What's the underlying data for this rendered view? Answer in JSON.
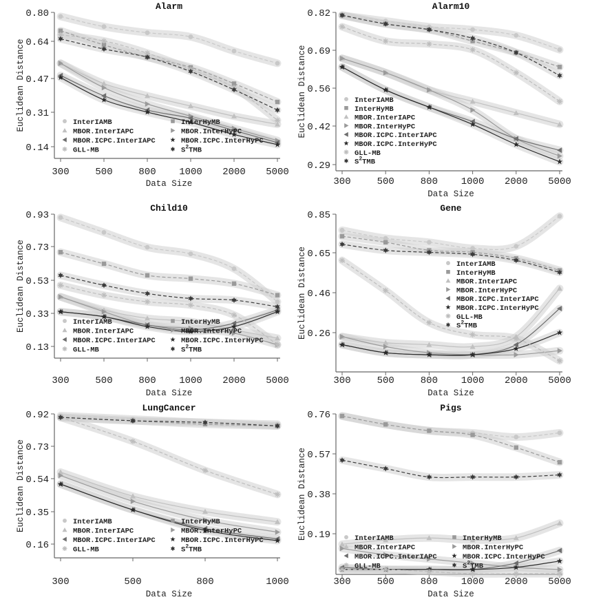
{
  "figure": {
    "ylabel": "Euclidean Distance",
    "xlabel": "Data Size"
  },
  "series_styles": [
    {
      "name": "InterIAMB",
      "marker": "circle",
      "color": "#c8c8c8",
      "dash": true
    },
    {
      "name": "InterHyMB",
      "marker": "square",
      "color": "#9a9a9a",
      "dash": true
    },
    {
      "name": "MBOR.InterIAPC",
      "marker": "triangle-up",
      "color": "#c0c0c0",
      "dash": false
    },
    {
      "name": "MBOR.InterHyPC",
      "marker": "triangle-right",
      "color": "#9a9a9a",
      "dash": false
    },
    {
      "name": "MBOR.ICPC.InterIAPC",
      "marker": "triangle-left",
      "color": "#6e6e6e",
      "dash": false
    },
    {
      "name": "MBOR.ICPC.InterHyPC",
      "marker": "star",
      "color": "#2a2a2a",
      "dash": false
    },
    {
      "name": "GLL-MB",
      "marker": "asterisk",
      "color": "#bdbdbd",
      "dash": true
    },
    {
      "name": "S2TMB",
      "marker": "star6",
      "color": "#3a3a3a",
      "dash": true
    }
  ],
  "legend_labels": [
    "InterIAMB",
    "InterHyMB",
    "MBOR.InterIAPC",
    "MBOR.InterHyPC",
    "MBOR.ICPC.InterIAPC",
    "MBOR.ICPC.InterHyPC",
    "GLL-MB",
    "S"
  ],
  "legend_s2tmb": {
    "prefix": "S",
    "sup": "2",
    "suffix": "TMB"
  },
  "chart_data": [
    {
      "type": "line",
      "title": "Alarm",
      "xlabel": "Data Size",
      "ylabel": "Euclidean Distance",
      "categories": [
        "300",
        "500",
        "800",
        "1000",
        "2000",
        "5000"
      ],
      "yticks": [
        "0.14",
        "0.31",
        "0.47",
        "0.64",
        "0.80"
      ],
      "ylim": [
        0.14,
        0.8
      ],
      "legend": "bottom-two-column",
      "series": [
        {
          "name": "InterIAMB",
          "values": [
            0.78,
            0.73,
            0.7,
            0.68,
            0.61,
            0.55
          ]
        },
        {
          "name": "InterHyMB",
          "values": [
            0.71,
            0.64,
            0.58,
            0.53,
            0.45,
            0.36
          ]
        },
        {
          "name": "MBOR.InterIAPC",
          "values": [
            0.55,
            0.45,
            0.39,
            0.34,
            0.29,
            0.25
          ]
        },
        {
          "name": "MBOR.InterHyPC",
          "values": [
            0.55,
            0.43,
            0.35,
            0.29,
            0.23,
            0.17
          ]
        },
        {
          "name": "MBOR.ICPC.InterIAPC",
          "values": [
            0.49,
            0.39,
            0.32,
            0.28,
            0.22,
            0.16
          ]
        },
        {
          "name": "MBOR.ICPC.InterHyPC",
          "values": [
            0.48,
            0.37,
            0.31,
            0.26,
            0.2,
            0.15
          ]
        },
        {
          "name": "GLL-MB",
          "values": [
            0.69,
            0.66,
            0.6,
            0.52,
            0.43,
            0.27
          ]
        },
        {
          "name": "S2TMB",
          "values": [
            0.67,
            0.62,
            0.58,
            0.51,
            0.42,
            0.32
          ]
        }
      ]
    },
    {
      "type": "line",
      "title": "Alarm10",
      "xlabel": "Data Size",
      "ylabel": "Euclidean Distance",
      "categories": [
        "300",
        "500",
        "800",
        "1000",
        "2000",
        "5000"
      ],
      "yticks": [
        "0.29",
        "0.42",
        "0.56",
        "0.69",
        "0.82"
      ],
      "ylim": [
        0.29,
        0.82
      ],
      "legend": "bottom-left",
      "series": [
        {
          "name": "InterIAMB",
          "values": [
            0.81,
            0.79,
            0.77,
            0.76,
            0.74,
            0.69
          ]
        },
        {
          "name": "InterHyMB",
          "values": [
            0.81,
            0.78,
            0.76,
            0.72,
            0.68,
            0.63
          ]
        },
        {
          "name": "MBOR.InterIAPC",
          "values": [
            0.66,
            0.61,
            0.55,
            0.51,
            0.47,
            0.43
          ]
        },
        {
          "name": "MBOR.InterHyPC",
          "values": [
            0.66,
            0.61,
            0.55,
            0.48,
            0.38,
            0.32
          ]
        },
        {
          "name": "MBOR.ICPC.InterIAPC",
          "values": [
            0.63,
            0.55,
            0.49,
            0.44,
            0.38,
            0.34
          ]
        },
        {
          "name": "MBOR.ICPC.InterHyPC",
          "values": [
            0.63,
            0.55,
            0.49,
            0.43,
            0.36,
            0.3
          ]
        },
        {
          "name": "GLL-MB",
          "values": [
            0.77,
            0.72,
            0.71,
            0.69,
            0.61,
            0.51
          ]
        },
        {
          "name": "S2TMB",
          "values": [
            0.81,
            0.78,
            0.76,
            0.73,
            0.68,
            0.6
          ]
        }
      ]
    },
    {
      "type": "line",
      "title": "Child10",
      "xlabel": "Data Size",
      "ylabel": "Euclidean Distance",
      "categories": [
        "300",
        "500",
        "800",
        "1000",
        "2000",
        "5000"
      ],
      "yticks": [
        "0.13",
        "0.33",
        "0.53",
        "0.73",
        "0.93"
      ],
      "ylim": [
        0.13,
        0.93
      ],
      "legend": "bottom-two-column",
      "series": [
        {
          "name": "InterIAMB",
          "values": [
            0.91,
            0.82,
            0.73,
            0.69,
            0.6,
            0.4
          ]
        },
        {
          "name": "InterHyMB",
          "values": [
            0.7,
            0.63,
            0.56,
            0.54,
            0.51,
            0.44
          ]
        },
        {
          "name": "MBOR.InterIAPC",
          "values": [
            0.43,
            0.35,
            0.3,
            0.28,
            0.23,
            0.18
          ]
        },
        {
          "name": "MBOR.InterHyPC",
          "values": [
            0.43,
            0.34,
            0.26,
            0.24,
            0.21,
            0.14
          ]
        },
        {
          "name": "MBOR.ICPC.InterIAPC",
          "values": [
            0.34,
            0.31,
            0.26,
            0.23,
            0.27,
            0.35
          ]
        },
        {
          "name": "MBOR.ICPC.InterHyPC",
          "values": [
            0.34,
            0.31,
            0.25,
            0.22,
            0.25,
            0.34
          ]
        },
        {
          "name": "GLL-MB",
          "values": [
            0.5,
            0.44,
            0.4,
            0.38,
            0.32,
            0.14
          ]
        },
        {
          "name": "S2TMB",
          "values": [
            0.56,
            0.5,
            0.45,
            0.42,
            0.41,
            0.37
          ]
        }
      ]
    },
    {
      "type": "line",
      "title": "Gene",
      "xlabel": "Data Size",
      "ylabel": "Euclidean Distance",
      "categories": [
        "300",
        "500",
        "800",
        "1000",
        "2000",
        "5000"
      ],
      "yticks": [
        "0.26",
        "0.46",
        "0.65",
        "0.85"
      ],
      "ylim": [
        0.12,
        0.85
      ],
      "legend": "right",
      "series": [
        {
          "name": "InterIAMB",
          "values": [
            0.77,
            0.73,
            0.71,
            0.68,
            0.69,
            0.84
          ]
        },
        {
          "name": "InterHyMB",
          "values": [
            0.74,
            0.71,
            0.67,
            0.66,
            0.63,
            0.57
          ]
        },
        {
          "name": "MBOR.InterIAPC",
          "values": [
            0.24,
            0.21,
            0.2,
            0.19,
            0.24,
            0.48
          ]
        },
        {
          "name": "MBOR.InterHyPC",
          "values": [
            0.24,
            0.19,
            0.16,
            0.15,
            0.15,
            0.17
          ]
        },
        {
          "name": "MBOR.ICPC.InterIAPC",
          "values": [
            0.2,
            0.16,
            0.15,
            0.15,
            0.2,
            0.38
          ]
        },
        {
          "name": "MBOR.ICPC.InterHyPC",
          "values": [
            0.2,
            0.16,
            0.15,
            0.15,
            0.18,
            0.26
          ]
        },
        {
          "name": "GLL-MB",
          "values": [
            0.62,
            0.47,
            0.31,
            0.25,
            0.23,
            0.12
          ]
        },
        {
          "name": "S2TMB",
          "values": [
            0.7,
            0.67,
            0.66,
            0.65,
            0.62,
            0.56
          ]
        }
      ]
    },
    {
      "type": "line",
      "title": "LungCancer",
      "xlabel": "Data Size",
      "ylabel": "Euclidean Distance",
      "categories": [
        "300",
        "500",
        "800",
        "1000"
      ],
      "yticks": [
        "0.16",
        "0.35",
        "0.54",
        "0.73",
        "0.92"
      ],
      "ylim": [
        0.1,
        0.92
      ],
      "legend": "bottom-two-column",
      "series": [
        {
          "name": "InterIAMB",
          "values": [
            0.91,
            0.89,
            0.87,
            0.86
          ]
        },
        {
          "name": "InterHyMB",
          "values": [
            0.9,
            0.88,
            0.86,
            0.85
          ]
        },
        {
          "name": "MBOR.InterIAPC",
          "values": [
            0.58,
            0.44,
            0.35,
            0.29
          ]
        },
        {
          "name": "MBOR.InterHyPC",
          "values": [
            0.56,
            0.41,
            0.3,
            0.23
          ]
        },
        {
          "name": "MBOR.ICPC.InterIAPC",
          "values": [
            0.51,
            0.36,
            0.25,
            0.19
          ]
        },
        {
          "name": "MBOR.ICPC.InterHyPC",
          "values": [
            0.51,
            0.36,
            0.24,
            0.18
          ]
        },
        {
          "name": "GLL-MB",
          "values": [
            0.9,
            0.76,
            0.59,
            0.45
          ]
        },
        {
          "name": "S2TMB",
          "values": [
            0.9,
            0.88,
            0.87,
            0.85
          ]
        }
      ]
    },
    {
      "type": "line",
      "title": "Pigs",
      "xlabel": "Data Size",
      "ylabel": "Euclidean Distance",
      "categories": [
        "300",
        "500",
        "800",
        "1000",
        "2000",
        "5000"
      ],
      "yticks": [
        "0.19",
        "0.38",
        "0.57",
        "0.76"
      ],
      "ylim": [
        0.0,
        0.76
      ],
      "legend": "bottom-two-column",
      "series": [
        {
          "name": "InterIAMB",
          "values": [
            0.75,
            0.71,
            0.68,
            0.67,
            0.65,
            0.67
          ]
        },
        {
          "name": "InterHyMB",
          "values": [
            0.75,
            0.71,
            0.68,
            0.66,
            0.6,
            0.53
          ]
        },
        {
          "name": "MBOR.InterIAPC",
          "values": [
            0.14,
            0.16,
            0.17,
            0.16,
            0.17,
            0.24
          ]
        },
        {
          "name": "MBOR.InterHyPC",
          "values": [
            0.12,
            0.09,
            0.07,
            0.05,
            0.03,
            0.02
          ]
        },
        {
          "name": "MBOR.ICPC.InterIAPC",
          "values": [
            0.03,
            0.02,
            0.02,
            0.02,
            0.05,
            0.11
          ]
        },
        {
          "name": "MBOR.ICPC.InterHyPC",
          "values": [
            0.02,
            0.02,
            0.02,
            0.02,
            0.03,
            0.06
          ]
        },
        {
          "name": "GLL-MB",
          "values": [
            0.02,
            0.02,
            0.01,
            0.0,
            0.0,
            0.0
          ]
        },
        {
          "name": "S2TMB",
          "values": [
            0.54,
            0.5,
            0.46,
            0.46,
            0.46,
            0.47
          ]
        }
      ]
    }
  ]
}
